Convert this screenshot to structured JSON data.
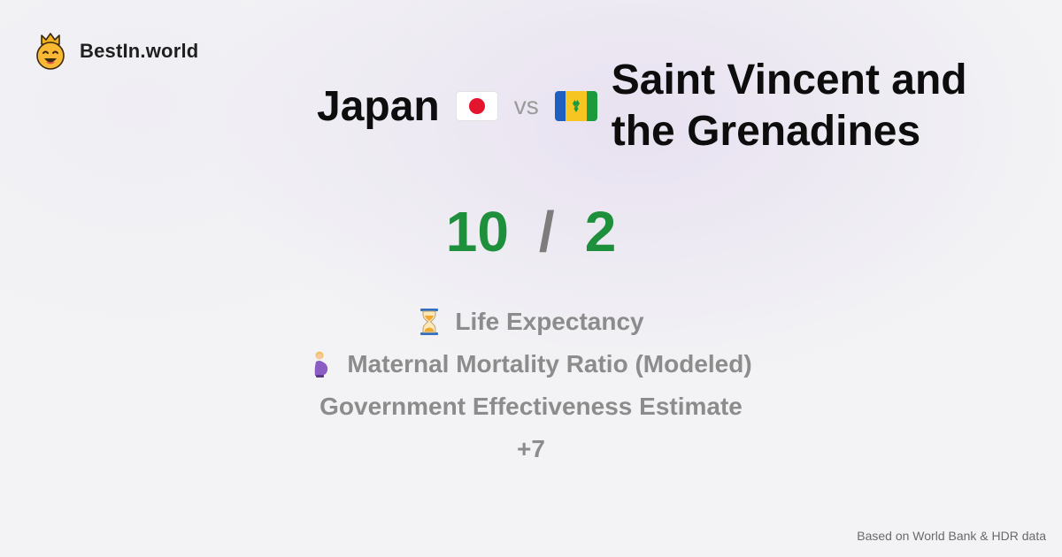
{
  "brand": {
    "name": "BestIn.world",
    "logo_icon": "crowned-smiley-icon"
  },
  "comparison": {
    "country_a": "Japan",
    "country_b": "Saint Vincent and the Grenadines",
    "vs_label": "vs",
    "flag_a_icon": "japan-flag-icon",
    "flag_b_icon": "saint-vincent-flag-icon"
  },
  "score": {
    "a": "10",
    "separator": "/",
    "b": "2",
    "color": "#1e8f3b"
  },
  "metrics": [
    {
      "label": "Life Expectancy",
      "icon": "hourglass-icon"
    },
    {
      "label": "Maternal Mortality Ratio (Modeled)",
      "icon": "pregnant-woman-icon"
    },
    {
      "label": "Government Effectiveness Estimate",
      "icon": ""
    },
    {
      "label": "+7",
      "icon": ""
    }
  ],
  "footer": {
    "source": "Based on World Bank & HDR data"
  }
}
